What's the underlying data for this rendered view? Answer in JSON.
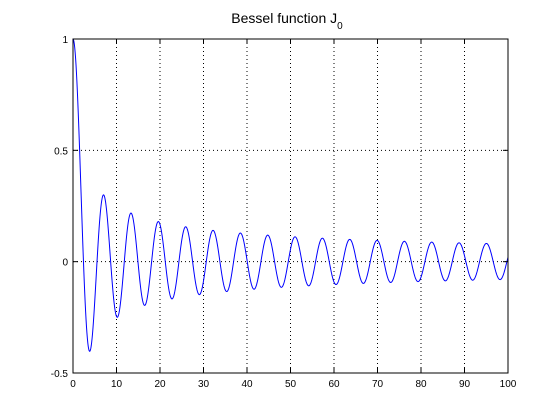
{
  "chart_data": {
    "type": "line",
    "title": "Bessel function J",
    "title_subscript": "0",
    "xlabel": "",
    "ylabel": "",
    "xlim": [
      0,
      100
    ],
    "ylim": [
      -0.5,
      1
    ],
    "xticks": [
      0,
      10,
      20,
      30,
      40,
      50,
      60,
      70,
      80,
      90,
      100
    ],
    "yticks": [
      -0.5,
      0,
      0.5,
      1
    ],
    "ytick_labels": [
      "-0.5",
      "0",
      "0.5",
      "1"
    ],
    "grid": true,
    "grid_style": "dotted",
    "box": true,
    "series": [
      {
        "function": "besselj0",
        "x_start": 0,
        "x_end": 100,
        "x_step": 0.1,
        "color": "#0000ff"
      }
    ]
  }
}
